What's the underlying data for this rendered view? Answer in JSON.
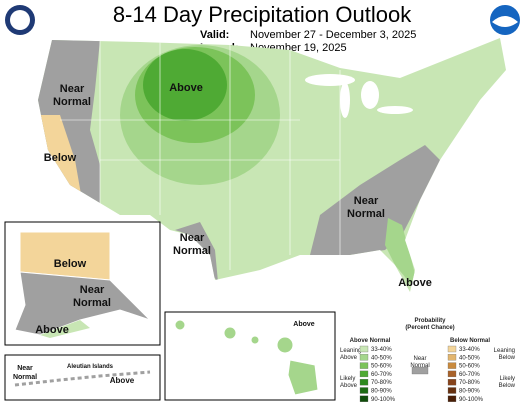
{
  "header": {
    "title": "8-14 Day Precipitation Outlook",
    "valid_label": "Valid:",
    "valid_dates": "November 27 - December 3, 2025",
    "issued_label": "Issued:",
    "issued_date": "November 19, 2025"
  },
  "map_labels": [
    {
      "lines": [
        "Near",
        "Normal"
      ]
    },
    {
      "lines": [
        "Above"
      ]
    },
    {
      "lines": [
        "Below"
      ]
    },
    {
      "lines": [
        "Near",
        "Normal"
      ]
    },
    {
      "lines": [
        "Near",
        "Normal"
      ]
    },
    {
      "lines": [
        "Above"
      ]
    },
    {
      "lines": [
        "Below"
      ]
    },
    {
      "lines": [
        "Near",
        "Normal"
      ]
    },
    {
      "lines": [
        "Above"
      ]
    },
    {
      "lines": [
        "Near",
        "Normal"
      ]
    },
    {
      "lines": [
        "Aleutian Islands"
      ]
    },
    {
      "lines": [
        "Above"
      ]
    },
    {
      "lines": [
        "Above"
      ]
    }
  ],
  "legend": {
    "title": [
      "Probability",
      "(Percent Chance)"
    ],
    "above_normal": "Above Normal",
    "below_normal": "Below Normal",
    "near_normal": [
      "Near",
      "Normal"
    ],
    "leaning_above": [
      "Leaning",
      "Above"
    ],
    "likely_above": [
      "Likely",
      "Above"
    ],
    "leaning_below": [
      "Leaning",
      "Below"
    ],
    "likely_below": [
      "Likely",
      "Below"
    ],
    "levels": [
      "33-40%",
      "40-50%",
      "50-60%",
      "60-70%",
      "70-80%",
      "80-90%",
      "90-100%"
    ],
    "above_colors": [
      "#c8e6b4",
      "#a5d68c",
      "#7cc35a",
      "#4faa34",
      "#2d8a1e",
      "#1b6b12",
      "#0f4d0a"
    ],
    "below_colors": [
      "#f3d59a",
      "#e2b56e",
      "#c98a3d",
      "#a9622a",
      "#87441c",
      "#66300f",
      "#4a1f07"
    ],
    "near_color": "#a0a0a0"
  }
}
